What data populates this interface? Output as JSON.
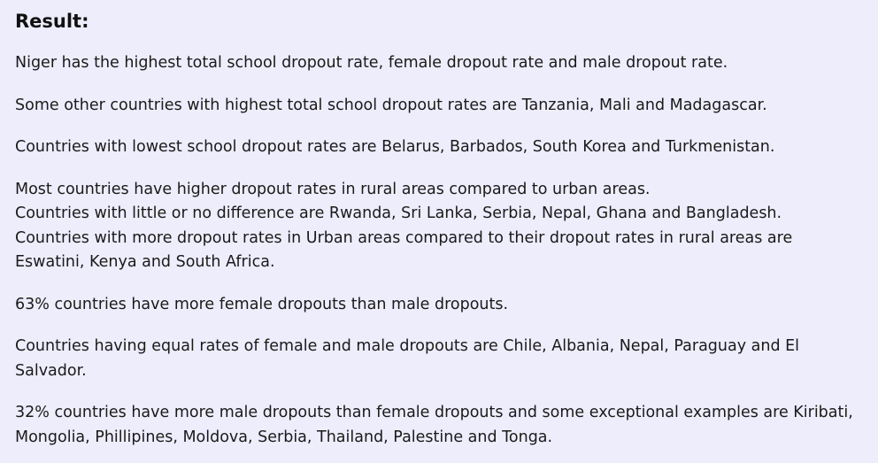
{
  "result": {
    "heading": "Result:",
    "paragraphs": [
      "Niger has the highest total school dropout rate, female dropout rate and male dropout rate.",
      "Some other countries with highest total school dropout rates are Tanzania, Mali and Madagascar.",
      "Countries with lowest school dropout rates are Belarus, Barbados, South Korea and Turkmenistan."
    ],
    "rural_urban": {
      "line1": "Most countries have higher dropout rates in rural areas compared to urban areas.",
      "line2": "Countries with little or no difference are Rwanda, Sri Lanka, Serbia, Nepal, Ghana and Bangladesh.",
      "line3": "Countries with more dropout rates in Urban areas compared to their dropout rates in rural areas are Eswatini, Kenya and South Africa."
    },
    "gender": [
      "63% countries have more female dropouts than male dropouts.",
      "Countries having equal rates of female and male dropouts are Chile, Albania, Nepal, Paraguay and El Salvador.",
      "32% countries have more male dropouts than female dropouts and some exceptional examples are Kiribati, Mongolia, Phillipines, Moldova, Serbia, Thailand, Palestine and Tonga."
    ]
  }
}
